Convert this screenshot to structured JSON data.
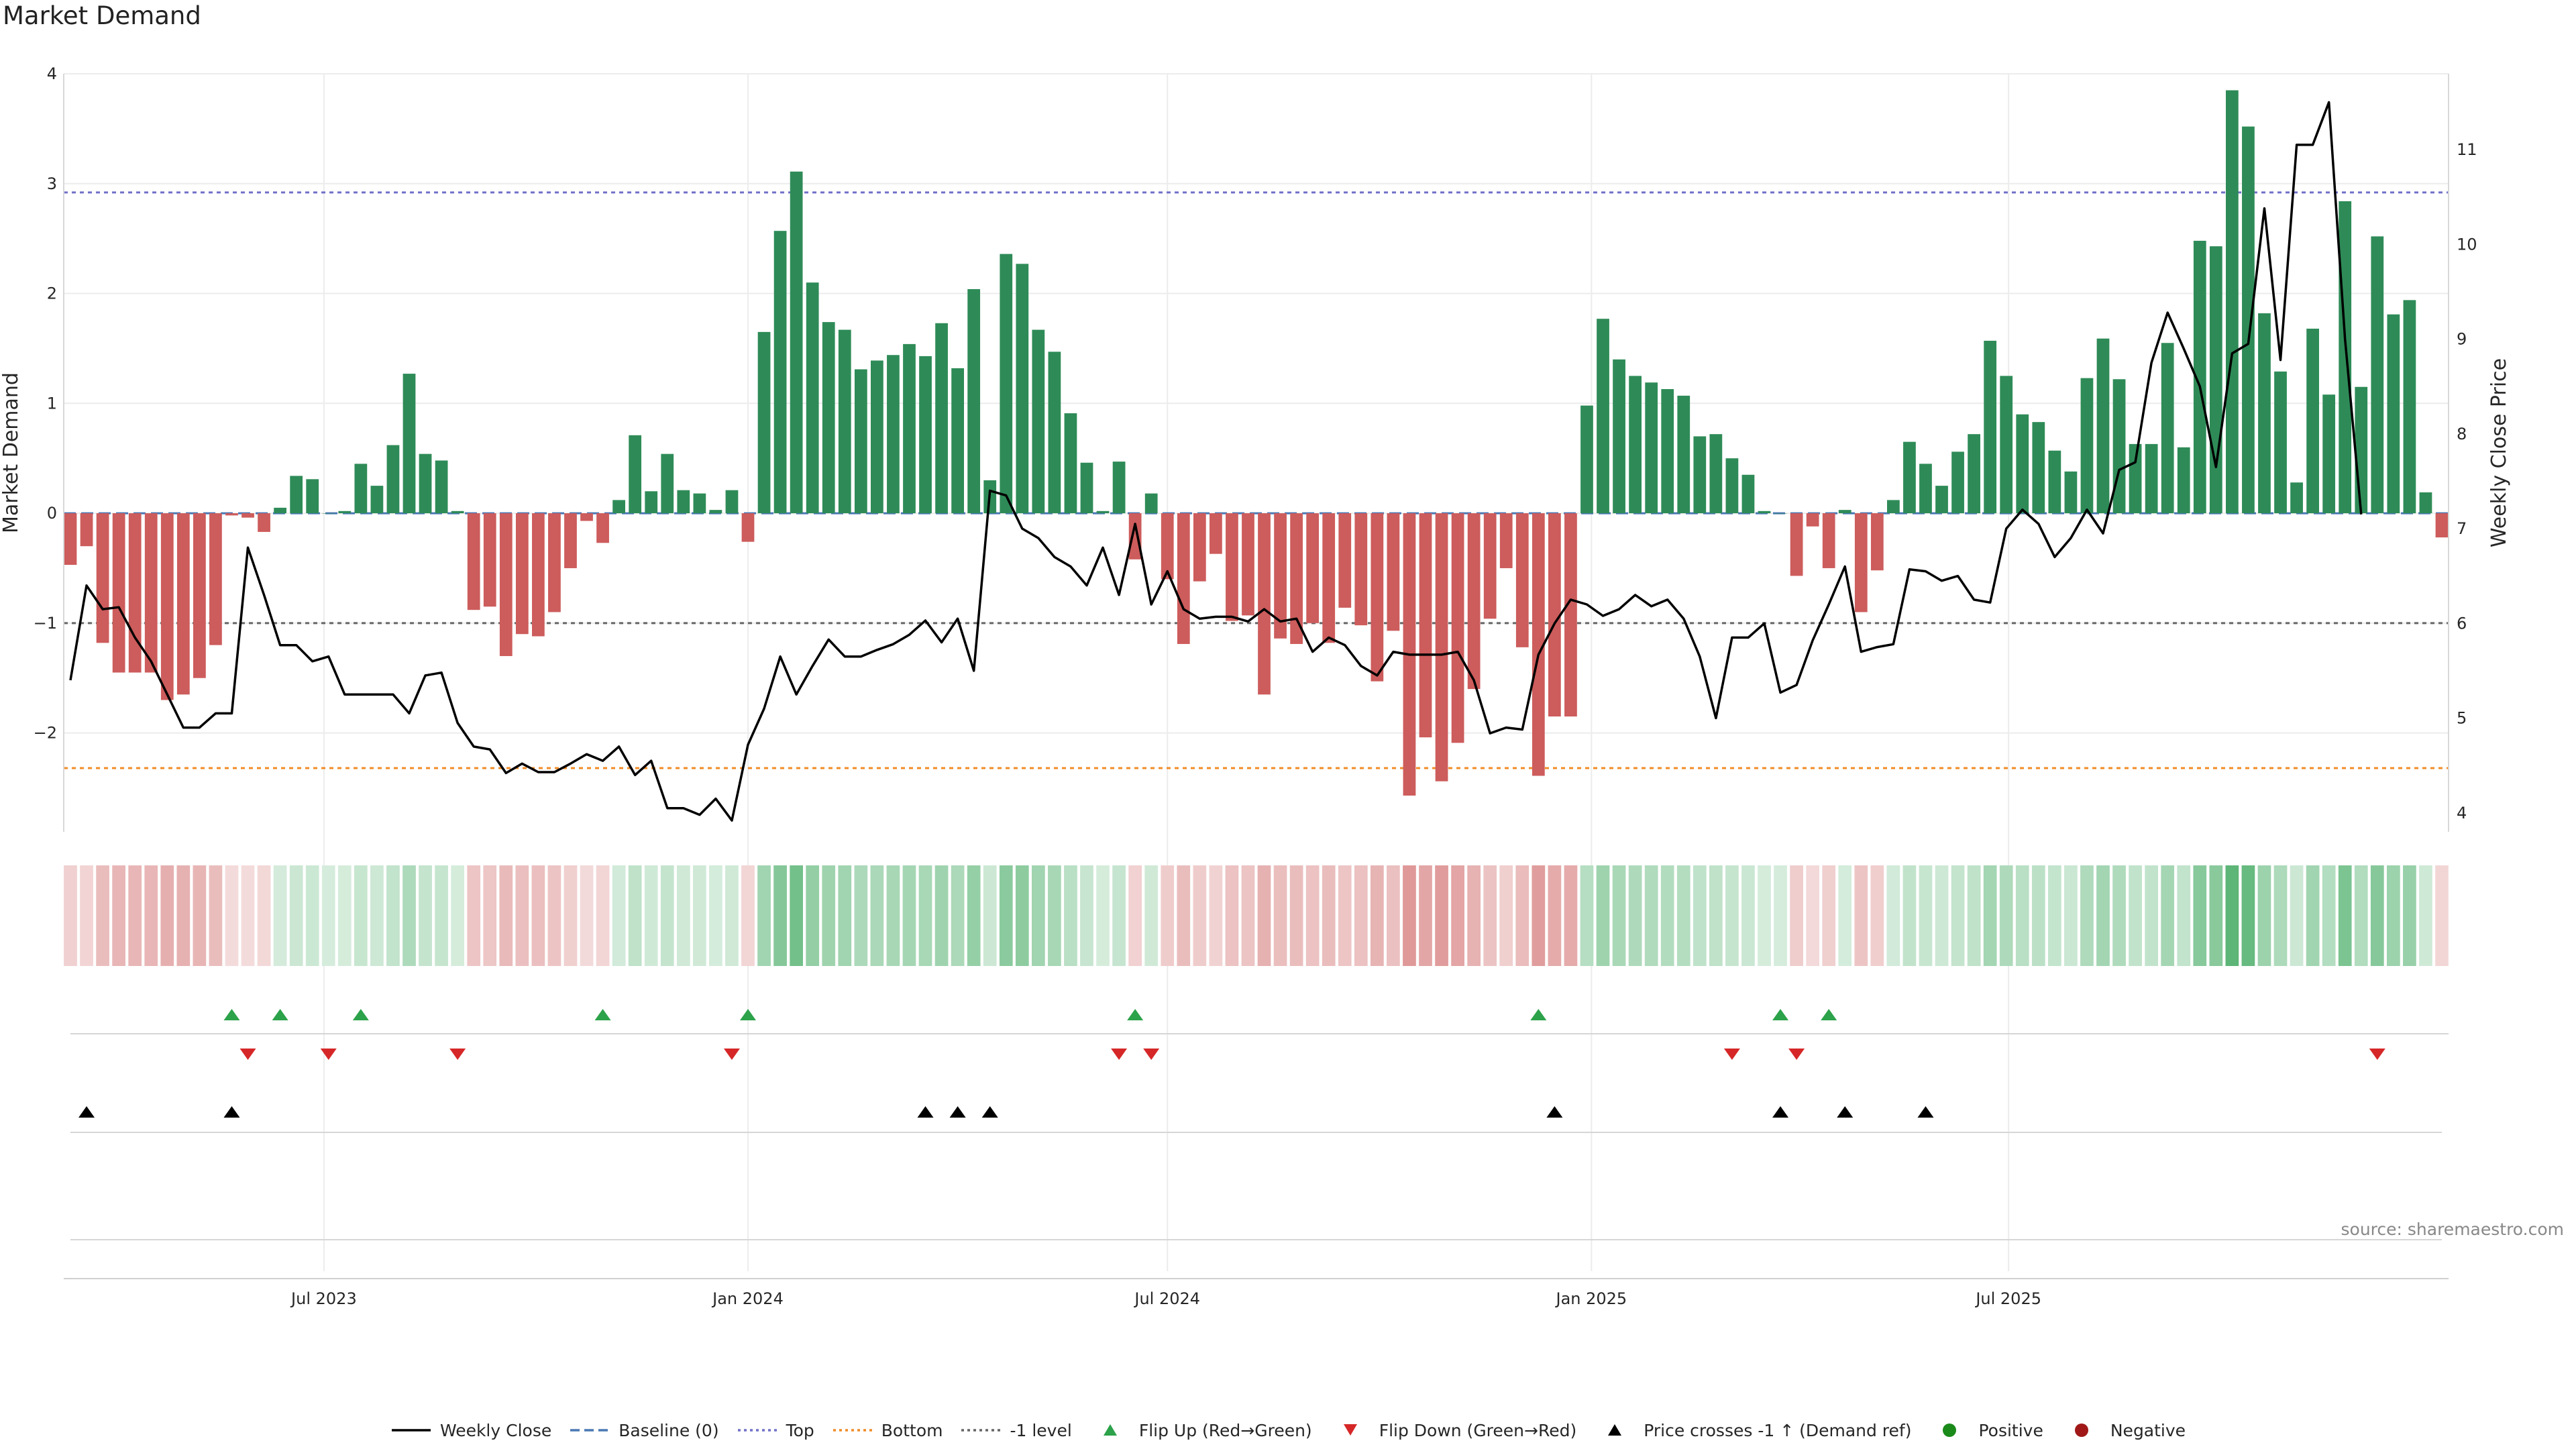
{
  "title": "Market Demand",
  "source": "source: sharemaestro.com",
  "colors": {
    "positive_bar": "#2e8b57",
    "negative_bar": "#cd5c5c",
    "price_line": "#000000",
    "baseline": "#4a78b4",
    "top": "#7070c8",
    "bottom": "#f08c28",
    "minus1": "#666666",
    "flip_up": "#2ca24a",
    "flip_down": "#d62728",
    "cross": "#000000",
    "positive_dot": "#1a8a1a",
    "negative_dot": "#a01818"
  },
  "chart_data": {
    "type": "bar",
    "title": "Market Demand",
    "xlabel": "",
    "ylabel": "Market Demand",
    "y2label": "Weekly Close Price",
    "x_start": "2023-03-13",
    "interval_days": 7,
    "ylim": [
      -2.9,
      4.0
    ],
    "y_ticks": [
      4,
      3,
      2,
      1,
      0,
      -1,
      -2
    ],
    "y_tick_labels": [
      "4",
      "3",
      "2",
      "1",
      "0",
      "−1",
      "−2"
    ],
    "y2lim": [
      3.8,
      11.8
    ],
    "y2_ticks": [
      4,
      5,
      6,
      7,
      8,
      9,
      10,
      11
    ],
    "x_ticks": [
      {
        "label": "Jul 2023",
        "date": "2023-07-01"
      },
      {
        "label": "Jan 2024",
        "date": "2024-01-01"
      },
      {
        "label": "Jul 2024",
        "date": "2024-07-01"
      },
      {
        "label": "Jan 2025",
        "date": "2025-01-01"
      },
      {
        "label": "Jul 2025",
        "date": "2025-07-01"
      }
    ],
    "reference_lines": [
      {
        "name": "Top",
        "value": 2.92
      },
      {
        "name": "Bottom",
        "value": -2.32
      },
      {
        "name": "-1 level",
        "value": -1.0
      },
      {
        "name": "Baseline (0)",
        "value": 0.0
      }
    ],
    "demand": [
      -0.47,
      -0.3,
      -1.18,
      -1.45,
      -1.45,
      -1.45,
      -1.7,
      -1.65,
      -1.5,
      -1.2,
      -0.02,
      -0.04,
      -0.17,
      0.05,
      0.34,
      0.31,
      0.0,
      0.02,
      0.45,
      0.25,
      0.62,
      1.27,
      0.54,
      0.48,
      0.02,
      -0.88,
      -0.85,
      -1.3,
      -1.1,
      -1.12,
      -0.9,
      -0.5,
      -0.07,
      -0.27,
      0.12,
      0.71,
      0.2,
      0.54,
      0.21,
      0.18,
      0.03,
      0.21,
      -0.26,
      1.65,
      2.57,
      3.11,
      2.1,
      1.74,
      1.67,
      1.31,
      1.39,
      1.44,
      1.54,
      1.43,
      1.73,
      1.32,
      2.04,
      0.3,
      2.36,
      2.27,
      1.67,
      1.47,
      0.91,
      0.46,
      0.02,
      0.47,
      -0.42,
      0.18,
      -0.6,
      -1.19,
      -0.62,
      -0.37,
      -0.98,
      -0.93,
      -1.65,
      -1.14,
      -1.19,
      -1.0,
      -1.18,
      -0.86,
      -1.02,
      -1.53,
      -1.07,
      -2.57,
      -2.04,
      -2.44,
      -2.09,
      -1.6,
      -0.96,
      -0.5,
      -1.22,
      -2.39,
      -1.85,
      -1.85,
      0.98,
      1.77,
      1.4,
      1.25,
      1.19,
      1.13,
      1.07,
      0.7,
      0.72,
      0.5,
      0.35,
      0.02,
      0.0,
      -0.57,
      -0.12,
      -0.5,
      0.03,
      -0.9,
      -0.52,
      0.12,
      0.65,
      0.45,
      0.25,
      0.56,
      0.72,
      1.57,
      1.25,
      0.9,
      0.83,
      0.57,
      0.38,
      1.23,
      1.59,
      1.22,
      0.63,
      0.63,
      1.55,
      0.6,
      2.48,
      2.43,
      3.85,
      3.52,
      1.82,
      1.29,
      0.28,
      1.68,
      1.08,
      2.84,
      1.15,
      2.52,
      1.81,
      1.94,
      0.19,
      -0.22
    ],
    "price": [
      5.4,
      6.4,
      6.15,
      6.17,
      5.85,
      5.6,
      5.25,
      4.9,
      4.9,
      5.05,
      5.05,
      6.8,
      6.3,
      5.77,
      5.77,
      5.6,
      5.65,
      5.25,
      5.25,
      5.25,
      5.25,
      5.05,
      5.45,
      5.48,
      4.95,
      4.7,
      4.67,
      4.42,
      4.52,
      4.43,
      4.43,
      4.52,
      4.62,
      4.55,
      4.7,
      4.4,
      4.55,
      4.05,
      4.05,
      3.98,
      4.15,
      3.92,
      4.72,
      5.1,
      5.65,
      5.25,
      5.55,
      5.83,
      5.65,
      5.65,
      5.72,
      5.78,
      5.88,
      6.03,
      5.8,
      6.05,
      5.5,
      7.4,
      7.35,
      7.0,
      6.9,
      6.7,
      6.6,
      6.4,
      6.8,
      6.3,
      7.05,
      6.2,
      6.55,
      6.15,
      6.05,
      6.07,
      6.07,
      6.02,
      6.15,
      6.02,
      6.05,
      5.7,
      5.85,
      5.77,
      5.55,
      5.45,
      5.7,
      5.67,
      5.67,
      5.67,
      5.7,
      5.4,
      4.84,
      4.9,
      4.88,
      5.67,
      6.0,
      6.25,
      6.2,
      6.08,
      6.15,
      6.3,
      6.18,
      6.25,
      6.05,
      5.65,
      5.0,
      5.85,
      5.85,
      6.0,
      5.27,
      5.35,
      5.82,
      6.2,
      6.6,
      5.7,
      5.75,
      5.78,
      6.57,
      6.55,
      6.45,
      6.5,
      6.25,
      6.22,
      7.0,
      7.2,
      7.05,
      6.7,
      6.9,
      7.2,
      6.95,
      7.62,
      7.7,
      8.75,
      9.28,
      8.9,
      8.5,
      7.65,
      8.85,
      8.95,
      10.38,
      8.78,
      11.05,
      11.05,
      11.5,
      9.0,
      7.15
    ],
    "flip_up_idx": [
      10,
      13,
      18,
      33,
      42,
      66,
      91,
      106,
      109
    ],
    "flip_down_idx": [
      11,
      16,
      24,
      41,
      65,
      67,
      103,
      107,
      143
    ],
    "cross_idx": [
      1,
      10,
      53,
      55,
      57,
      92,
      106,
      110,
      115
    ]
  },
  "legend": [
    {
      "label": "Weekly Close",
      "kind": "line",
      "color": "#000000"
    },
    {
      "label": "Baseline (0)",
      "kind": "dash",
      "color": "#4a78b4"
    },
    {
      "label": "Top",
      "kind": "dot",
      "color": "#7070c8"
    },
    {
      "label": "Bottom",
      "kind": "dot",
      "color": "#f08c28"
    },
    {
      "label": "-1 level",
      "kind": "dot",
      "color": "#666666"
    },
    {
      "label": "Flip Up (Red→Green)",
      "kind": "tri-up",
      "color": "#2ca24a"
    },
    {
      "label": "Flip Down (Green→Red)",
      "kind": "tri-down",
      "color": "#d62728"
    },
    {
      "label": "Price crosses -1 ↑ (Demand ref)",
      "kind": "tri-up",
      "color": "#000000"
    },
    {
      "label": "Positive",
      "kind": "circle",
      "color": "#1a8a1a"
    },
    {
      "label": "Negative",
      "kind": "circle",
      "color": "#a01818"
    }
  ]
}
